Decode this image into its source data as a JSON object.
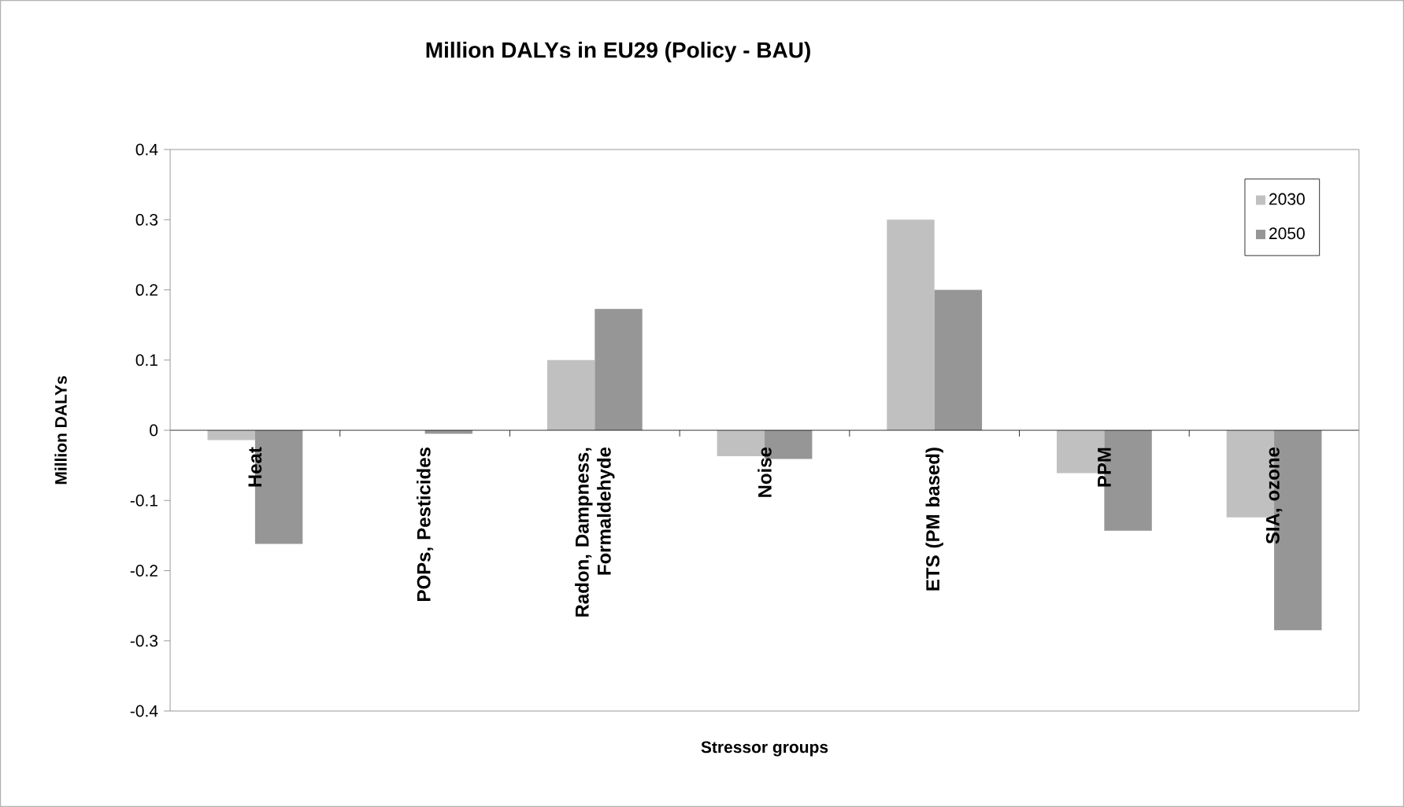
{
  "chart_data": {
    "type": "bar",
    "title": "Million DALYs in EU29 (Policy - BAU)",
    "xlabel": "Stressor groups",
    "ylabel": "Million DALYs",
    "categories": [
      "Heat",
      "POPs, Pesticides",
      "Radon, Dampness, Formaldehyde",
      "Noise",
      "ETS (PM based)",
      "PPM",
      "SIA, ozone"
    ],
    "series": [
      {
        "name": "2030",
        "color": "#c0c0c0",
        "values": [
          -0.014,
          null,
          0.1,
          -0.037,
          0.3,
          -0.061,
          -0.124
        ]
      },
      {
        "name": "2050",
        "color": "#969696",
        "values": [
          -0.162,
          -0.005,
          0.173,
          -0.041,
          0.2,
          -0.143,
          -0.285
        ]
      }
    ],
    "ylim": [
      -0.4,
      0.4
    ],
    "yticks": [
      -0.4,
      -0.3,
      -0.2,
      -0.1,
      0,
      0.1,
      0.2,
      0.3,
      0.4
    ],
    "grid": false,
    "legend": "top right"
  }
}
